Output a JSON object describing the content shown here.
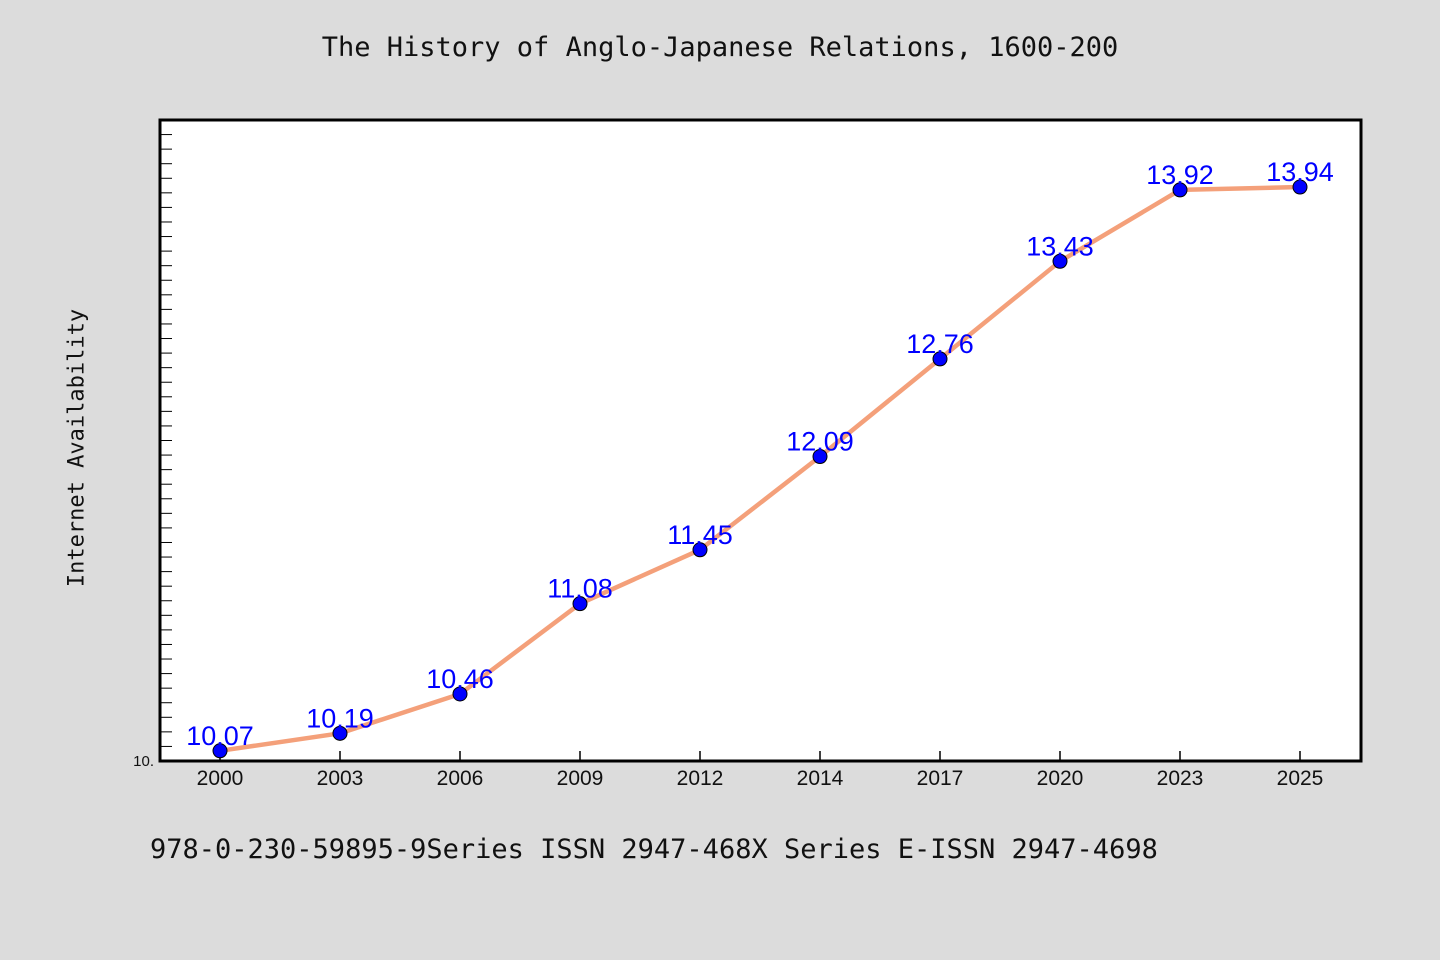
{
  "chart_data": {
    "type": "line",
    "title": "The History of Anglo-Japanese Relations, 1600-200",
    "xlabel": "",
    "ylabel": "Internet Availability",
    "categories": [
      "2000",
      "2003",
      "2006",
      "2009",
      "2012",
      "2014",
      "2017",
      "2020",
      "2023",
      "2025"
    ],
    "series": [
      {
        "values": [
          10.07,
          10.19,
          10.46,
          11.08,
          11.45,
          12.09,
          12.76,
          13.43,
          13.92,
          13.94
        ]
      }
    ],
    "data_labels": [
      "10.07",
      "10.19",
      "10.46",
      "11.08",
      "11.45",
      "12.09",
      "12.76",
      "13.43",
      "13.92",
      "13.94"
    ],
    "y_tick_label": "10.",
    "ylim": [
      10.0,
      14.4
    ],
    "grid": false,
    "line_color": "#f4a07a",
    "marker_color": "#0000ff",
    "label_color": "#0000ff",
    "plot_background": "#ffffff",
    "page_background": "#dcdcdc"
  },
  "footer": "978-0-230-59895-9Series ISSN 2947-468X Series E-ISSN 2947-4698"
}
